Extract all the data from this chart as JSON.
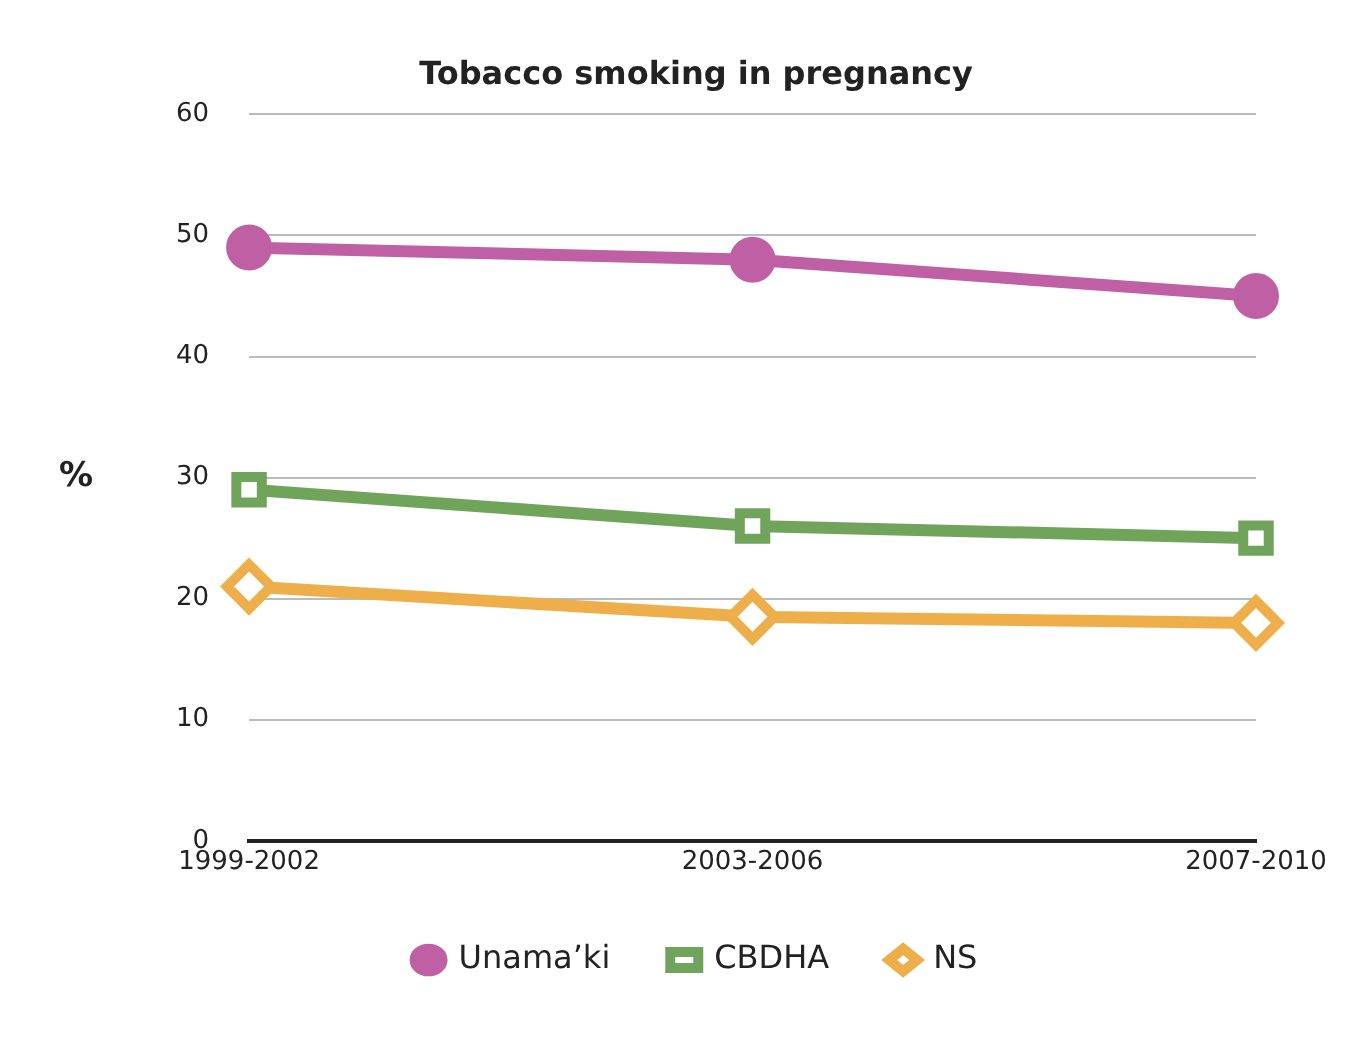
{
  "chart_data": {
    "type": "line",
    "title": "Tobacco smoking in pregnancy",
    "ylabel": "%",
    "categories": [
      "1999-2002",
      "2003-2006",
      "2007-2010"
    ],
    "series": [
      {
        "name": "Unama’ki",
        "color": "#c060a4",
        "values": [
          49,
          48,
          45
        ],
        "marker": "circle"
      },
      {
        "name": "CBDHA",
        "color": "#6fa45a",
        "values": [
          29,
          26,
          25
        ],
        "marker": "square"
      },
      {
        "name": "NS",
        "color": "#eeaf4a",
        "values": [
          21,
          18.5,
          18
        ],
        "marker": "diamond"
      }
    ],
    "ylim": [
      0,
      60
    ],
    "yticks": [
      0,
      10,
      20,
      30,
      40,
      50,
      60
    ],
    "grid": "y",
    "legend": "bottom"
  }
}
